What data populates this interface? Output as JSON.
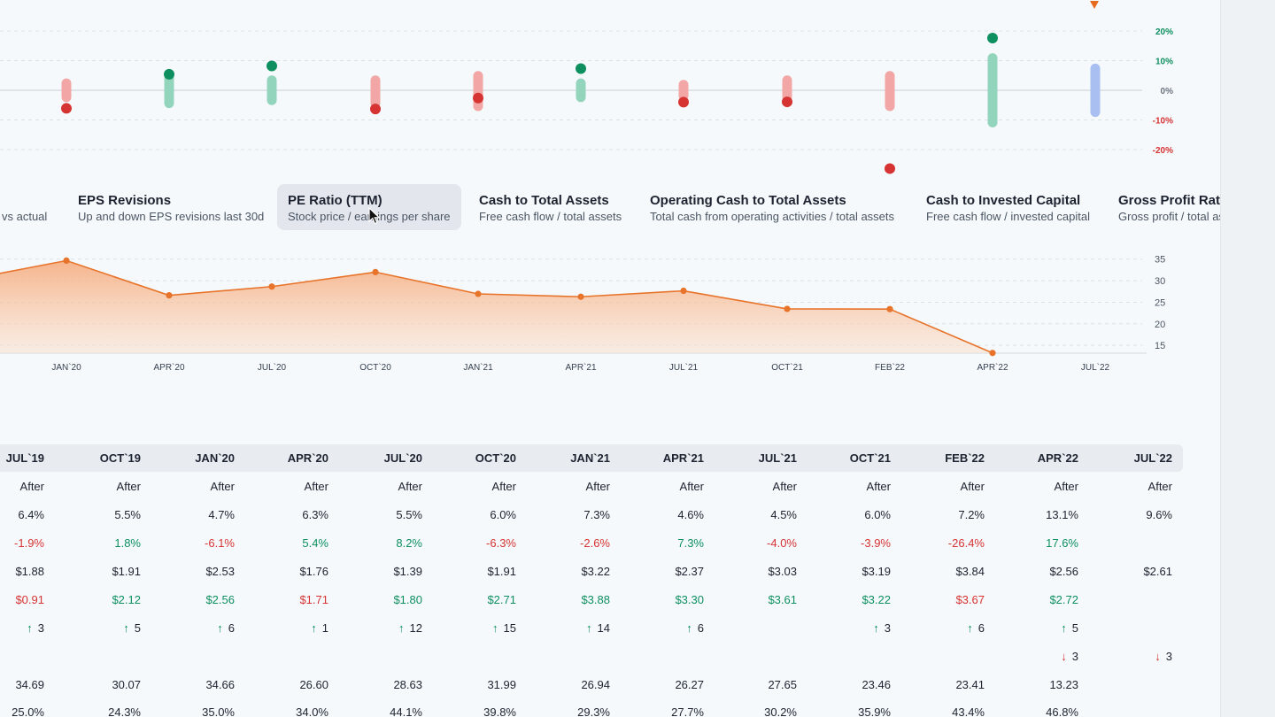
{
  "top_chart": {
    "y_ticks": [
      "20%",
      "10%",
      "0%",
      "-10%",
      "-20%"
    ],
    "y_tick_values": [
      20,
      10,
      0,
      -10,
      -20
    ],
    "pos_color": "#0e8f5f",
    "neg_color": "#d63333",
    "pending_color": "#a9bff1",
    "marker_color": "#e66b1f",
    "points": [
      {
        "period": "JAN`20",
        "low": -4,
        "high": 4,
        "value": -6.1,
        "bar": "neg"
      },
      {
        "period": "APR`20",
        "low": -6,
        "high": 6,
        "value": 5.4,
        "bar": "pos"
      },
      {
        "period": "JUL`20",
        "low": -5,
        "high": 5,
        "value": 8.2,
        "bar": "pos"
      },
      {
        "period": "OCT`20",
        "low": -6,
        "high": 5,
        "value": -6.3,
        "bar": "neg"
      },
      {
        "period": "JAN`21",
        "low": -7,
        "high": 6.5,
        "value": -2.6,
        "bar": "neg"
      },
      {
        "period": "APR`21",
        "low": -4,
        "high": 4,
        "value": 7.3,
        "bar": "pos"
      },
      {
        "period": "JUL`21",
        "low": -3.5,
        "high": 3.5,
        "value": -4.0,
        "bar": "neg"
      },
      {
        "period": "OCT`21",
        "low": -4,
        "high": 5,
        "value": -3.9,
        "bar": "neg"
      },
      {
        "period": "FEB`22",
        "low": -7,
        "high": 6.5,
        "value": -26.4,
        "bar": "neg"
      },
      {
        "period": "APR`22",
        "low": -12.5,
        "high": 12.5,
        "value": 17.6,
        "bar": "pos"
      },
      {
        "period": "JUL`22",
        "low": -9,
        "high": 9,
        "value": null,
        "bar": "pending"
      }
    ]
  },
  "metric_tabs": [
    {
      "title": "",
      "subtitle": "vs actual"
    },
    {
      "title": "EPS Revisions",
      "subtitle": "Up and down EPS revisions last 30d"
    },
    {
      "title": "PE Ratio (TTM)",
      "subtitle": "Stock price / earnings per share",
      "active": true
    },
    {
      "title": "Cash to Total Assets",
      "subtitle": "Free cash flow / total assets"
    },
    {
      "title": "Operating Cash to Total Assets",
      "subtitle": "Total cash from operating activities / total assets"
    },
    {
      "title": "Cash to Invested Capital",
      "subtitle": "Free cash flow / invested capital"
    },
    {
      "title": "Gross Profit Ratio",
      "subtitle": "Gross profit / total assets"
    }
  ],
  "chart_data": {
    "type": "area",
    "title": "PE Ratio (TTM)",
    "categories": [
      "JAN`20",
      "APR`20",
      "JUL`20",
      "OCT`20",
      "JAN`21",
      "APR`21",
      "JUL`21",
      "OCT`21",
      "FEB`22",
      "APR`22",
      "JUL`22"
    ],
    "x_leading_value": 30.07,
    "series": [
      {
        "name": "PE Ratio (TTM)",
        "values": [
          34.66,
          26.6,
          28.63,
          31.99,
          26.94,
          26.27,
          27.65,
          23.46,
          23.41,
          13.23,
          null
        ],
        "color": "#e8732a"
      }
    ],
    "y_ticks": [
      35,
      30,
      25,
      20,
      15
    ],
    "ylim": [
      10.5,
      37
    ],
    "grid": true
  },
  "table": {
    "columns": [
      "JUL`19",
      "OCT`19",
      "JAN`20",
      "APR`20",
      "JUL`20",
      "OCT`20",
      "JAN`21",
      "APR`21",
      "JUL`21",
      "OCT`21",
      "FEB`22",
      "APR`22",
      "JUL`22"
    ],
    "rows": [
      {
        "kind": "plain",
        "cells": [
          "After",
          "After",
          "After",
          "After",
          "After",
          "After",
          "After",
          "After",
          "After",
          "After",
          "After",
          "After",
          "After"
        ]
      },
      {
        "kind": "plain",
        "cells": [
          "6.4%",
          "5.5%",
          "4.7%",
          "6.3%",
          "5.5%",
          "6.0%",
          "7.3%",
          "4.6%",
          "4.5%",
          "6.0%",
          "7.2%",
          "13.1%",
          "9.6%"
        ]
      },
      {
        "kind": "signed",
        "cells": [
          "-1.9%",
          "1.8%",
          "-6.1%",
          "5.4%",
          "8.2%",
          "-6.3%",
          "-2.6%",
          "7.3%",
          "-4.0%",
          "-3.9%",
          "-26.4%",
          "17.6%",
          ""
        ]
      },
      {
        "kind": "plain",
        "cells": [
          "$1.88",
          "$1.91",
          "$2.53",
          "$1.76",
          "$1.39",
          "$1.91",
          "$3.22",
          "$2.37",
          "$3.03",
          "$3.19",
          "$3.84",
          "$2.56",
          "$2.61"
        ]
      },
      {
        "kind": "colored",
        "colors": [
          "neg",
          "pos",
          "pos",
          "neg",
          "pos",
          "pos",
          "pos",
          "pos",
          "pos",
          "pos",
          "neg",
          "pos",
          ""
        ],
        "cells": [
          "$0.91",
          "$2.12",
          "$2.56",
          "$1.71",
          "$1.80",
          "$2.71",
          "$3.88",
          "$3.30",
          "$3.61",
          "$3.22",
          "$3.67",
          "$2.72",
          ""
        ]
      },
      {
        "kind": "arrow-up",
        "arrow": "↑",
        "cells": [
          "3",
          "5",
          "6",
          "1",
          "12",
          "15",
          "14",
          "6",
          "",
          "3",
          "6",
          "5",
          ""
        ]
      },
      {
        "kind": "arrow-down",
        "arrow": "↓",
        "cells": [
          "",
          "",
          "",
          "",
          "",
          "",
          "",
          "",
          "",
          "",
          "",
          "3",
          "3"
        ]
      },
      {
        "kind": "plain",
        "cells": [
          "34.69",
          "30.07",
          "34.66",
          "26.60",
          "28.63",
          "31.99",
          "26.94",
          "26.27",
          "27.65",
          "23.46",
          "23.41",
          "13.23",
          ""
        ]
      },
      {
        "kind": "plain",
        "cells": [
          "25.0%",
          "24.3%",
          "35.0%",
          "34.0%",
          "44.1%",
          "39.8%",
          "29.3%",
          "27.7%",
          "30.2%",
          "35.9%",
          "43.4%",
          "46.8%",
          ""
        ]
      }
    ]
  }
}
